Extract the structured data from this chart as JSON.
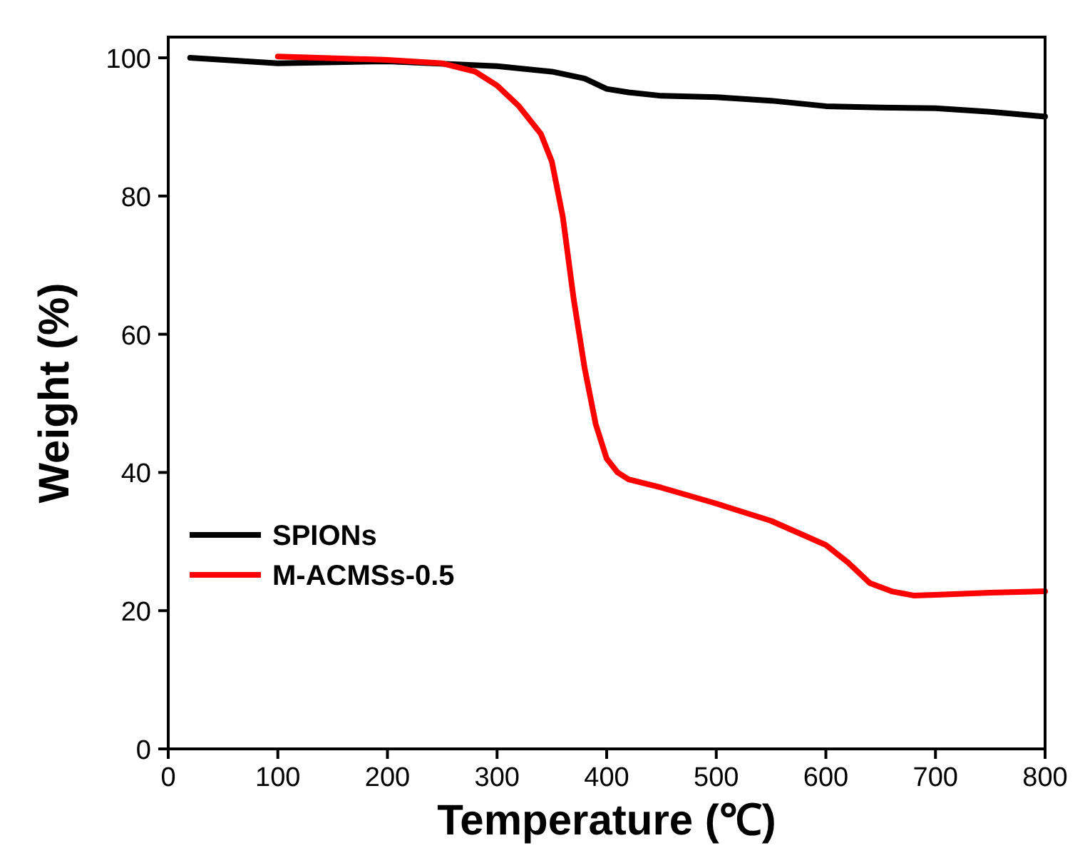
{
  "chart_data": {
    "type": "line",
    "xlabel": "Temperature (℃)",
    "ylabel": "Weight (%)",
    "xlim": [
      0,
      800
    ],
    "ylim": [
      0,
      103
    ],
    "xticks": [
      0,
      100,
      200,
      300,
      400,
      500,
      600,
      700,
      800
    ],
    "yticks": [
      0,
      20,
      40,
      60,
      80,
      100
    ],
    "legend": "bottom left",
    "grid": false,
    "series": [
      {
        "name": "SPIONs",
        "color": "#000000",
        "x": [
          20,
          100,
          200,
          300,
          350,
          380,
          400,
          420,
          450,
          500,
          550,
          600,
          650,
          700,
          750,
          800
        ],
        "values": [
          100,
          99.2,
          99.5,
          98.8,
          98,
          97,
          95.5,
          95,
          94.5,
          94.3,
          93.8,
          93,
          92.8,
          92.7,
          92.2,
          91.5
        ]
      },
      {
        "name": "M-ACMSs-0.5",
        "color": "#ff0000",
        "x": [
          100,
          200,
          250,
          280,
          300,
          320,
          340,
          350,
          360,
          370,
          380,
          390,
          400,
          410,
          420,
          450,
          500,
          550,
          600,
          620,
          640,
          660,
          680,
          700,
          750,
          800
        ],
        "values": [
          100.2,
          99.7,
          99.2,
          98,
          96,
          93,
          89,
          85,
          77,
          65,
          55,
          47,
          42,
          40,
          39,
          37.8,
          35.5,
          33,
          29.5,
          27,
          24,
          22.8,
          22.2,
          22.3,
          22.6,
          22.8
        ]
      }
    ]
  }
}
